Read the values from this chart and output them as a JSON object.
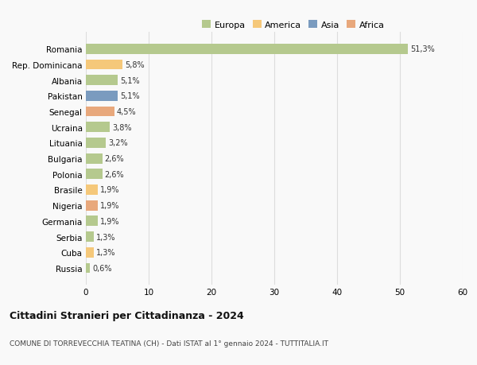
{
  "countries": [
    "Romania",
    "Rep. Dominicana",
    "Albania",
    "Pakistan",
    "Senegal",
    "Ucraina",
    "Lituania",
    "Bulgaria",
    "Polonia",
    "Brasile",
    "Nigeria",
    "Germania",
    "Serbia",
    "Cuba",
    "Russia"
  ],
  "values": [
    51.3,
    5.8,
    5.1,
    5.1,
    4.5,
    3.8,
    3.2,
    2.6,
    2.6,
    1.9,
    1.9,
    1.9,
    1.3,
    1.3,
    0.6
  ],
  "labels": [
    "51,3%",
    "5,8%",
    "5,1%",
    "5,1%",
    "4,5%",
    "3,8%",
    "3,2%",
    "2,6%",
    "2,6%",
    "1,9%",
    "1,9%",
    "1,9%",
    "1,3%",
    "1,3%",
    "0,6%"
  ],
  "colors": [
    "#b5c98e",
    "#f5c87a",
    "#b5c98e",
    "#7a9bbf",
    "#e8a87c",
    "#b5c98e",
    "#b5c98e",
    "#b5c98e",
    "#b5c98e",
    "#f5c87a",
    "#e8a87c",
    "#b5c98e",
    "#b5c98e",
    "#f5c87a",
    "#b5c98e"
  ],
  "continent_colors": {
    "Europa": "#b5c98e",
    "America": "#f5c87a",
    "Asia": "#7a9bbf",
    "Africa": "#e8a87c"
  },
  "xlim": [
    0,
    60
  ],
  "xticks": [
    0,
    10,
    20,
    30,
    40,
    50,
    60
  ],
  "title": "Cittadini Stranieri per Cittadinanza - 2024",
  "subtitle": "COMUNE DI TORREVECCHIA TEATINA (CH) - Dati ISTAT al 1° gennaio 2024 - TUTTITALIA.IT",
  "background_color": "#f9f9f9",
  "grid_color": "#dddddd",
  "bar_height": 0.65
}
